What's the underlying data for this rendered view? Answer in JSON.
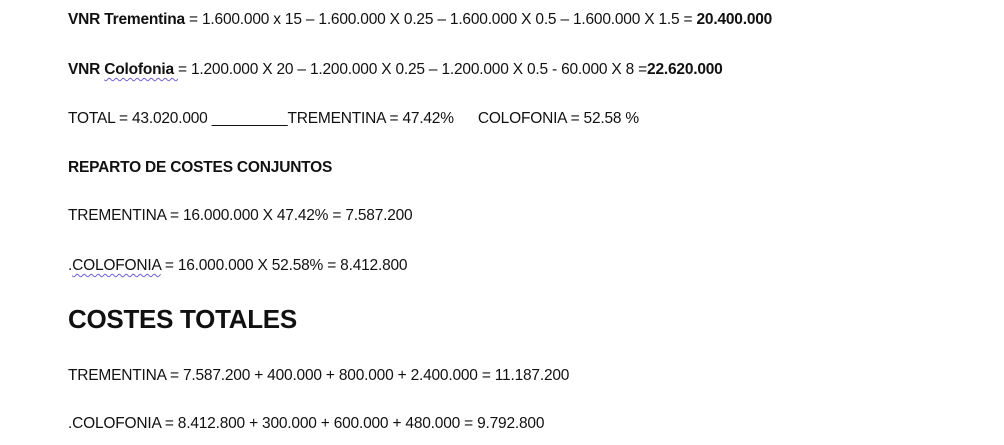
{
  "vnr_trementina": {
    "label": "VNR Trementina",
    "formula": " = 1.600.000 x 15 – 1.600.000 X 0.25 – 1.600.000 X 0.5 – 1.600.000 X 1.5 = ",
    "result": "20.400.000"
  },
  "vnr_colofonia": {
    "prefix": "VNR ",
    "label": "Colofonia ",
    "formula": " = 1.200.000 X 20 – 1.200.000 X 0.25 – 1.200.000 X 0.5 - 60.000 X 8 =",
    "result": "22.620.000"
  },
  "total_line": {
    "total": "TOTAL = 43.020.000 _________",
    "trementina": "TREMENTINA = 47.42%",
    "colofonia": "COLOFONIA = 52.58 %"
  },
  "reparto": {
    "heading": "REPARTO DE COSTES CONJUNTOS",
    "trementina": "TREMENTINA = 16.000.000 X 47.42% = 7.587.200",
    "colofonia_prefix": ".",
    "colofonia_label": "COLOFONIA",
    "colofonia_rest": " = 16.000.000 X 52.58% = 8.412.800"
  },
  "costes_totales": {
    "heading": "COSTES TOTALES",
    "trementina": "TREMENTINA = 7.587.200 + 400.000 + 800.000 + 2.400.000 =   11.187.200",
    "colofonia": ".COLOFONIA = 8.412.800 + 300.000 + 600.000 + 480.000 = 9.792.800"
  }
}
